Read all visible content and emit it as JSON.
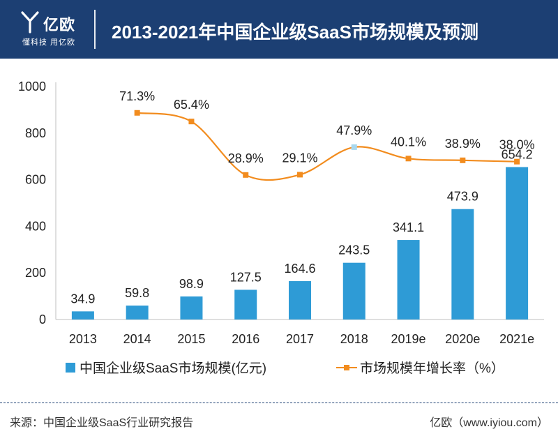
{
  "header": {
    "logo_text": "亿欧",
    "logo_slogan": "懂科技 用亿欧",
    "title": "2013-2021年中国企业级SaaS市场规模及预测"
  },
  "colors": {
    "header_bg": "#1c3f73",
    "bar": "#2e9bd6",
    "line": "#f28c1e"
  },
  "chart_data": {
    "type": "bar+line",
    "title": "2013-2021年中国企业级SaaS市场规模及预测",
    "categories": [
      "2013",
      "2014",
      "2015",
      "2016",
      "2017",
      "2018",
      "2019e",
      "2020e",
      "2021e"
    ],
    "ylim": [
      0,
      1000
    ],
    "yticks": [
      "0",
      "200",
      "400",
      "600",
      "800",
      "1000"
    ],
    "grid": false,
    "legend_position": "bottom",
    "series": [
      {
        "name": "中国企业级SaaS市场规模(亿元)",
        "type": "bar",
        "values": [
          34.9,
          59.8,
          98.9,
          127.5,
          164.6,
          243.5,
          341.1,
          473.9,
          654.2
        ],
        "labels": [
          "34.9",
          "59.8",
          "98.9",
          "127.5",
          "164.6",
          "243.5",
          "341.1",
          "473.9",
          "654.2"
        ]
      },
      {
        "name": "市场规模年增长率（%）",
        "type": "line",
        "values": [
          null,
          71.3,
          65.4,
          28.9,
          29.1,
          47.9,
          40.1,
          38.9,
          38.0
        ],
        "labels": [
          null,
          "71.3%",
          "65.4%",
          "28.9%",
          "29.1%",
          "47.9%",
          "40.1%",
          "38.9%",
          "38.0%"
        ]
      }
    ]
  },
  "legend": {
    "bar_label": "中国企业级SaaS市场规模(亿元)",
    "line_label": "市场规模年增长率（%）"
  },
  "footer": {
    "source": "来源：中国企业级SaaS行业研究报告",
    "brand": "亿欧（www.iyiou.com）"
  }
}
